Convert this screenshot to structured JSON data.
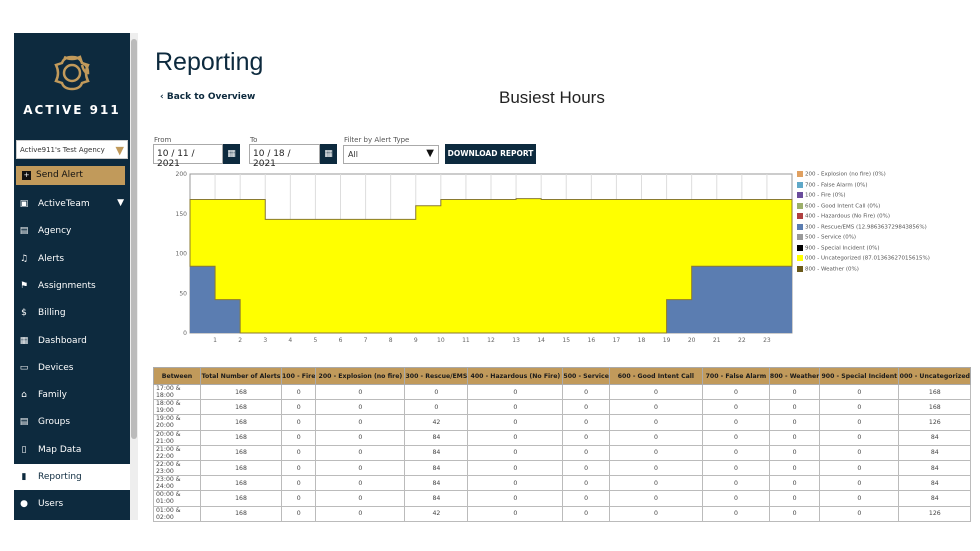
{
  "sidebar": {
    "brand": "ACTIVE 911",
    "agency": "Active911's Test Agency",
    "send_alert": "Send Alert",
    "items": [
      {
        "label": "ActiveTeam",
        "icon": "calendar-icon"
      },
      {
        "label": "Agency",
        "icon": "building-icon"
      },
      {
        "label": "Alerts",
        "icon": "bell-icon"
      },
      {
        "label": "Assignments",
        "icon": "flag-icon"
      },
      {
        "label": "Billing",
        "icon": "dollar-icon"
      },
      {
        "label": "Dashboard",
        "icon": "dashboard-icon"
      },
      {
        "label": "Devices",
        "icon": "devices-icon"
      },
      {
        "label": "Family",
        "icon": "home-icon"
      },
      {
        "label": "Groups",
        "icon": "groups-icon"
      },
      {
        "label": "Map Data",
        "icon": "map-icon"
      },
      {
        "label": "Reporting",
        "icon": "bar-chart-icon",
        "active": true
      },
      {
        "label": "Users",
        "icon": "users-icon"
      }
    ]
  },
  "header": {
    "title": "Reporting",
    "back": "Back to Overview"
  },
  "filters": {
    "from_label": "From",
    "from": "10 / 11 /  2021",
    "to_label": "To",
    "to": "10 / 18 /  2021",
    "type_label": "Filter by Alert Type",
    "type": "All",
    "download": "DOWNLOAD REPORT"
  },
  "colors": {
    "navy": "#0d2a3e",
    "gold": "#c19a5b",
    "rescue": "#5b7db1",
    "uncategorized": "#ffff00"
  },
  "chart_data": {
    "type": "area",
    "title": "Busiest Hours",
    "stacked": true,
    "step": true,
    "ylim": [
      0,
      200
    ],
    "yticks": [
      0,
      50,
      100,
      150,
      200
    ],
    "x": [
      0,
      1,
      2,
      3,
      4,
      5,
      6,
      7,
      8,
      9,
      10,
      11,
      12,
      13,
      14,
      15,
      16,
      17,
      18,
      19,
      20,
      21,
      22,
      23
    ],
    "xticks": [
      "1",
      "2",
      "3",
      "4",
      "5",
      "6",
      "7",
      "8",
      "9",
      "10",
      "11",
      "12",
      "13",
      "14",
      "15",
      "16",
      "17",
      "18",
      "19",
      "20",
      "21",
      "22",
      "23"
    ],
    "legend_position": "right",
    "grid": true,
    "legend": [
      {
        "label": "200 - Explosion (no fire) (0%)",
        "color": "#e0a060"
      },
      {
        "label": "700 - False Alarm (0%)",
        "color": "#5fa8c8"
      },
      {
        "label": "100 - Fire (0%)",
        "color": "#6a4c9c"
      },
      {
        "label": "600 - Good Intent Call (0%)",
        "color": "#9caf6a"
      },
      {
        "label": "400 - Hazardous (No Fire) (0%)",
        "color": "#b04040"
      },
      {
        "label": "300 - Rescue/EMS (12.986363729843856%)",
        "color": "#5b7db1"
      },
      {
        "label": "500 - Service (0%)",
        "color": "#999999"
      },
      {
        "label": "900 - Special Incident (0%)",
        "color": "#000000"
      },
      {
        "label": "000 - Uncategorized (87.01363627015615%)",
        "color": "#ffff00"
      },
      {
        "label": "800 - Weather (0%)",
        "color": "#6b5a1a"
      }
    ],
    "series": [
      {
        "name": "300 - Rescue/EMS",
        "values": [
          84,
          42,
          0,
          0,
          0,
          0,
          0,
          0,
          0,
          0,
          0,
          0,
          0,
          0,
          0,
          0,
          0,
          0,
          0,
          42,
          84,
          84,
          84,
          84
        ]
      },
      {
        "name": "000 - Uncategorized",
        "values": [
          84,
          126,
          168,
          143,
          143,
          143,
          143,
          143,
          143,
          160,
          168,
          168,
          168,
          169,
          168,
          168,
          168,
          168,
          168,
          126,
          84,
          84,
          84,
          84
        ]
      }
    ]
  },
  "table": {
    "headers": [
      "Between",
      "Total Number of Alerts",
      "100 - Fire",
      "200 - Explosion (no fire)",
      "300 - Rescue/EMS",
      "400 - Hazardous (No Fire)",
      "500 - Service",
      "600 - Good Intent Call",
      "700 - False Alarm",
      "800 - Weather",
      "900 - Special Incident",
      "000 - Uncategorized"
    ],
    "rows": [
      [
        "17:00 & 18:00",
        "168",
        "0",
        "0",
        "0",
        "0",
        "0",
        "0",
        "0",
        "0",
        "0",
        "168"
      ],
      [
        "18:00 & 19:00",
        "168",
        "0",
        "0",
        "0",
        "0",
        "0",
        "0",
        "0",
        "0",
        "0",
        "168"
      ],
      [
        "19:00 & 20:00",
        "168",
        "0",
        "0",
        "42",
        "0",
        "0",
        "0",
        "0",
        "0",
        "0",
        "126"
      ],
      [
        "20:00 & 21:00",
        "168",
        "0",
        "0",
        "84",
        "0",
        "0",
        "0",
        "0",
        "0",
        "0",
        "84"
      ],
      [
        "21:00 & 22:00",
        "168",
        "0",
        "0",
        "84",
        "0",
        "0",
        "0",
        "0",
        "0",
        "0",
        "84"
      ],
      [
        "22:00 & 23:00",
        "168",
        "0",
        "0",
        "84",
        "0",
        "0",
        "0",
        "0",
        "0",
        "0",
        "84"
      ],
      [
        "23:00 & 24:00",
        "168",
        "0",
        "0",
        "84",
        "0",
        "0",
        "0",
        "0",
        "0",
        "0",
        "84"
      ],
      [
        "00:00 & 01:00",
        "168",
        "0",
        "0",
        "84",
        "0",
        "0",
        "0",
        "0",
        "0",
        "0",
        "84"
      ],
      [
        "01:00 & 02:00",
        "168",
        "0",
        "0",
        "42",
        "0",
        "0",
        "0",
        "0",
        "0",
        "0",
        "126"
      ]
    ]
  }
}
